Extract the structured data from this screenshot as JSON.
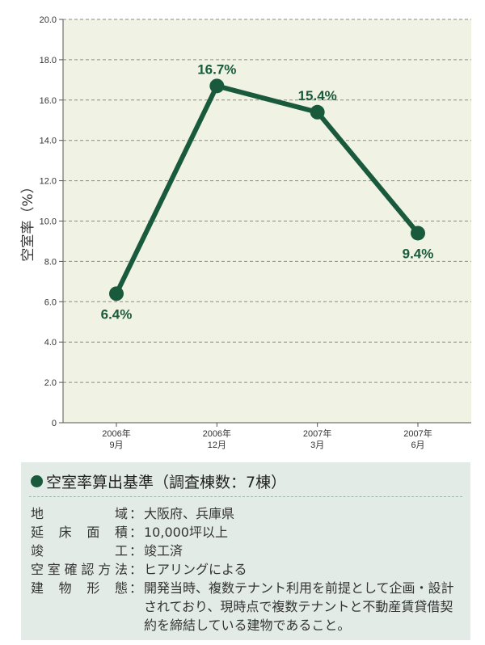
{
  "chart_data": {
    "type": "line",
    "categories": [
      [
        "2006年",
        "9月"
      ],
      [
        "2006年",
        "12月"
      ],
      [
        "2007年",
        "3月"
      ],
      [
        "2007年",
        "6月"
      ]
    ],
    "values": [
      6.4,
      16.7,
      15.4,
      9.4
    ],
    "data_labels": [
      "6.4%",
      "16.7%",
      "15.4%",
      "9.4%"
    ],
    "y_ticks": [
      "0",
      "2.0",
      "4.0",
      "6.0",
      "8.0",
      "10.0",
      "12.0",
      "14.0",
      "16.0",
      "18.0",
      "20.0"
    ],
    "ylabel": "空室率（%）",
    "ylim": [
      0,
      20
    ],
    "grid": true,
    "colors": {
      "line": "#1a5a3c",
      "plot_bg": "#f0f3e3",
      "grid": "#8a8a8a"
    }
  },
  "criteria": {
    "title": "空室率算出基準（調査棟数：7棟）",
    "rows": [
      {
        "key": "地域",
        "sep": "：",
        "value": "大阪府、兵庫県"
      },
      {
        "key": "延床面積",
        "sep": "：",
        "value": "10,000坪以上"
      },
      {
        "key": "竣工",
        "sep": "：",
        "value": "竣工済"
      },
      {
        "key": "空室確認方法",
        "sep": "：",
        "value": "ヒアリングによる"
      },
      {
        "key": "建物形態",
        "sep": "：",
        "value": "開発当時、複数テナント利用を前提として企画・設計されており、現時点で複数テナントと不動産賃貸借契約を締結している建物であること。"
      }
    ]
  }
}
